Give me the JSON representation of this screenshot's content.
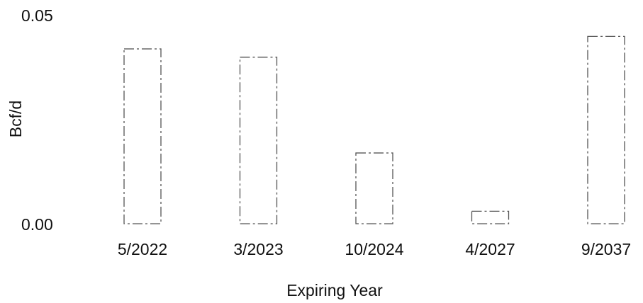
{
  "chart_data": {
    "type": "bar",
    "xlabel": "Expiring Year",
    "ylabel": "Bcf/d",
    "categories": [
      "5/2022",
      "3/2023",
      "10/2024",
      "4/2027",
      "9/2037"
    ],
    "values": [
      0.042,
      0.04,
      0.017,
      0.003,
      0.045
    ],
    "ylim": [
      0,
      0.05
    ],
    "yticks": [
      "0.00",
      "0.05"
    ],
    "grid": false,
    "legend": "none"
  },
  "colors": {
    "bar_fill": "#ffffff",
    "bar_outline": "#555555",
    "text": "#111111"
  }
}
